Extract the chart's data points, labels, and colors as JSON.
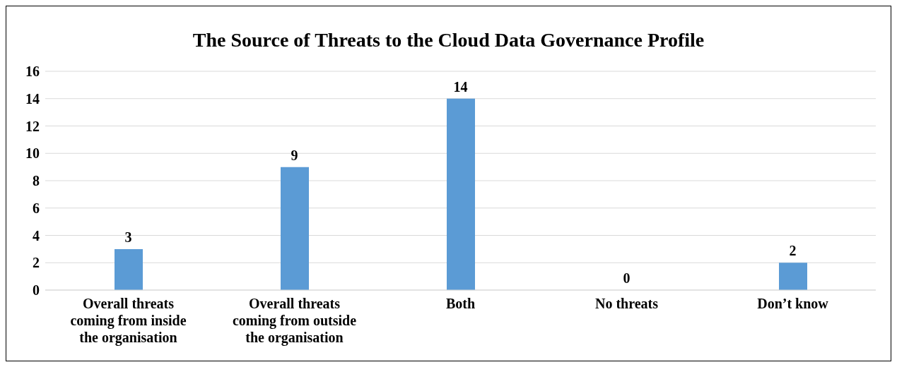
{
  "chart_data": {
    "type": "bar",
    "title": "The Source of Threats to the Cloud Data Governance Profile",
    "categories": [
      "Overall threats coming from inside the organisation",
      "Overall threats coming from outside the organisation",
      "Both",
      "No threats",
      "Don’t know"
    ],
    "values": [
      3,
      9,
      14,
      0,
      2
    ],
    "color": "#5b9bd5",
    "ylim": [
      0,
      16
    ],
    "yticks": [
      0,
      2,
      4,
      6,
      8,
      10,
      12,
      14,
      16
    ],
    "grid": "y",
    "data_labels": true,
    "legend": false
  }
}
